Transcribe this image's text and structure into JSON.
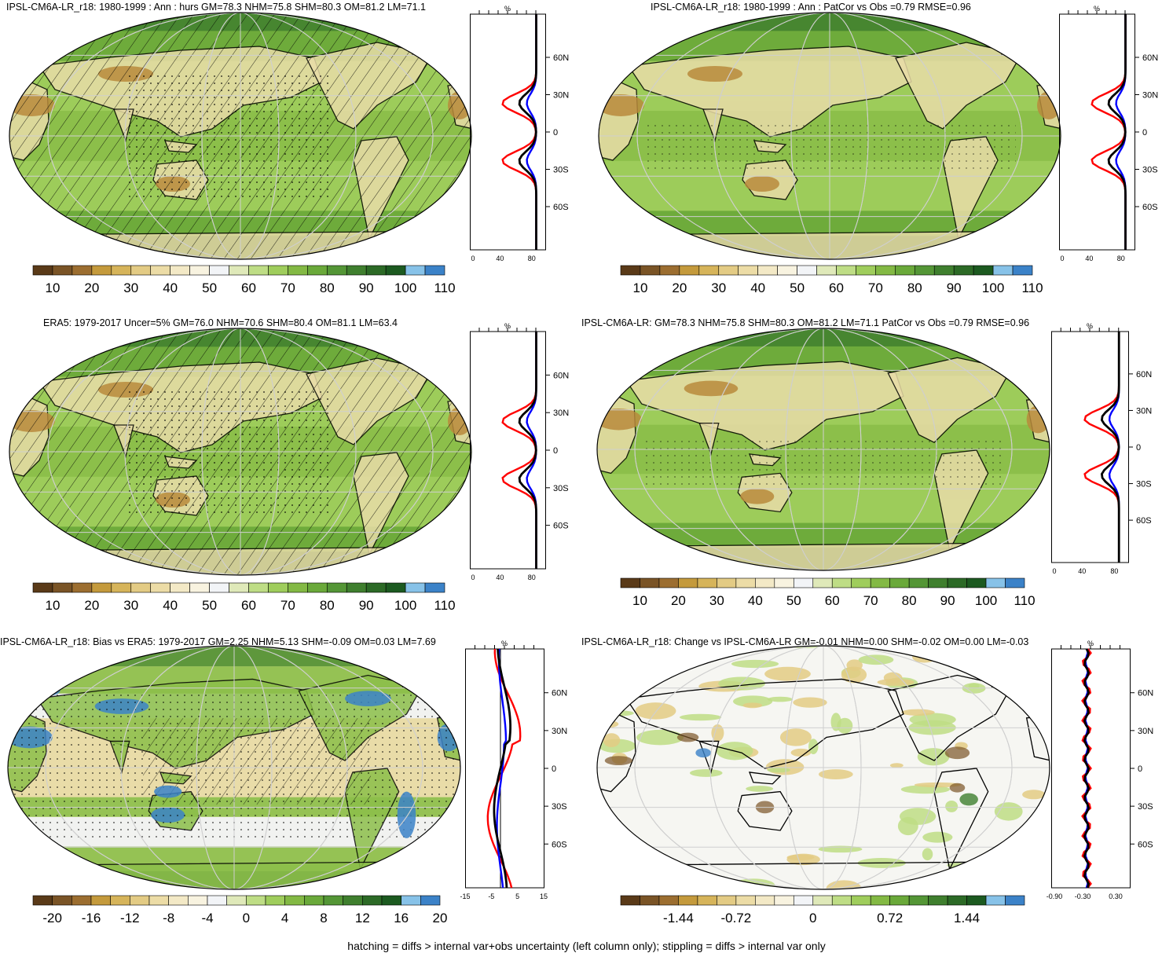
{
  "footnote": "hatching = diffs > internal var+obs uncertainty (left column only); stippling = diffs > internal var only",
  "colors": {
    "land_dry": "#b88a3c",
    "land_tan": "#e9dca8",
    "ocean_green": "#8cbf4a",
    "ocean_dark": "#4f8f30",
    "profile_red": "#ff0000",
    "profile_blue": "#0000ff",
    "profile_black": "#000000"
  },
  "colorbar_colors": [
    "#5a3a18",
    "#7a5426",
    "#9c6e30",
    "#c49a3c",
    "#d6b45a",
    "#e3cb84",
    "#ecdca6",
    "#f3e9c6",
    "#f8f3e0",
    "#f2f4f7",
    "#dfe9b9",
    "#bedd85",
    "#9fcd5c",
    "#83b944",
    "#6aa93a",
    "#549636",
    "#3f7f2e",
    "#2c6a26",
    "#1c5a20",
    "#87c2e8",
    "#3b82c8"
  ],
  "lat_labels": [
    "60N",
    "30N",
    "0",
    "30S",
    "60S"
  ],
  "panels": [
    {
      "id": "model-climatology",
      "title": "IPSL-CM6A-LR_r18: 1980-1999 : Ann : hurs GM=78.3 NHM=75.8 SHM=80.3 OM=81.2 LM=71.1",
      "map_type": "hatched",
      "profile_unit": "%",
      "profile_xticks": [
        "0",
        "40",
        "80"
      ],
      "colorbar_ticks": [
        "10",
        "20",
        "30",
        "40",
        "50",
        "60",
        "70",
        "80",
        "90",
        "100",
        "110"
      ]
    },
    {
      "id": "model-patcor",
      "title": "IPSL-CM6A-LR_r18: 1980-1999 : Ann : PatCor vs Obs =0.79 RMSE=0.96",
      "map_type": "stippled",
      "profile_unit": "%",
      "profile_xticks": [
        "0",
        "40",
        "80"
      ],
      "colorbar_ticks": [
        "10",
        "20",
        "30",
        "40",
        "50",
        "60",
        "70",
        "80",
        "90",
        "100",
        "110"
      ]
    },
    {
      "id": "era5-climatology",
      "title": "ERA5: 1979-2017 Uncer=5% GM=76.0 NHM=70.6 SHM=80.4 OM=81.1 LM=63.4",
      "map_type": "hatched",
      "profile_unit": "%",
      "profile_xticks": [
        "0",
        "40",
        "80"
      ],
      "colorbar_ticks": [
        "10",
        "20",
        "30",
        "40",
        "50",
        "60",
        "70",
        "80",
        "90",
        "100",
        "110"
      ]
    },
    {
      "id": "ensemble-mean",
      "title": "IPSL-CM6A-LR: GM=78.3 NHM=75.8 SHM=80.3 OM=81.2 LM=71.1 PatCor vs Obs =0.79 RMSE=0.96",
      "map_type": "stippled",
      "profile_unit": "%",
      "profile_xticks": [
        "0",
        "40",
        "80"
      ],
      "colorbar_ticks": [
        "10",
        "20",
        "30",
        "40",
        "50",
        "60",
        "70",
        "80",
        "90",
        "100",
        "110"
      ]
    },
    {
      "id": "bias-vs-era5",
      "title": "IPSL-CM6A-LR_r18: Bias vs ERA5: 1979-2017 GM=2.25 NHM=5.13 SHM=-0.09 OM=0.03 LM=7.69",
      "map_type": "bias",
      "profile_unit": "%",
      "profile_xticks": [
        "-15",
        "-5",
        "5",
        "15"
      ],
      "colorbar_ticks": [
        "-20",
        "-16",
        "-12",
        "-8",
        "-4",
        "0",
        "4",
        "8",
        "12",
        "16",
        "20"
      ]
    },
    {
      "id": "change-vs-ensemble",
      "title": "IPSL-CM6A-LR_r18: Change vs IPSL-CM6A-LR GM=-0.01 NHM=0.00 SHM=-0.02 OM=0.00 LM=-0.03",
      "map_type": "change",
      "profile_unit": "%",
      "profile_xticks": [
        "-0.90",
        "-0.30",
        "0.30"
      ],
      "colorbar_ticks": [
        "-1.44",
        "-0.72",
        "0",
        "0.72",
        "1.44"
      ]
    }
  ]
}
